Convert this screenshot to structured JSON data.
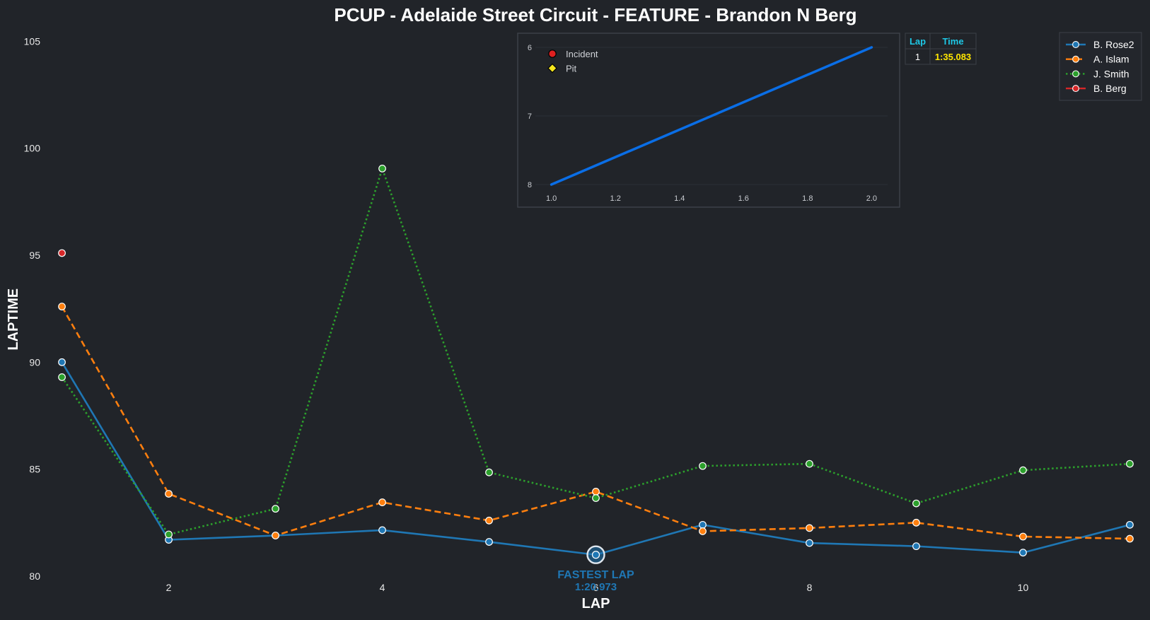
{
  "chart_data": [
    {
      "type": "line",
      "title": "PCUP - Adelaide Street Circuit - FEATURE - Brandon N Berg",
      "xlabel": "LAP",
      "ylabel": "LAPTIME",
      "xlim": [
        0.95,
        11.05
      ],
      "ylim": [
        80,
        106.2
      ],
      "x_ticks": [
        2,
        4,
        6,
        8,
        10
      ],
      "y_ticks": [
        80,
        85,
        90,
        95,
        100,
        105
      ],
      "grid": false,
      "legend_position": "top-right",
      "series": [
        {
          "name": "B. Rose2",
          "color": "#1f77b4",
          "style": "solid",
          "x": [
            1,
            2,
            3,
            4,
            5,
            6,
            7,
            8,
            9,
            10,
            11
          ],
          "values": [
            90.0,
            81.7,
            81.9,
            82.15,
            81.6,
            81.0,
            82.4,
            81.55,
            81.4,
            81.1,
            82.4
          ]
        },
        {
          "name": "A. Islam",
          "color": "#ff7f0e",
          "style": "dashed",
          "x": [
            1,
            2,
            3,
            4,
            5,
            6,
            7,
            8,
            9,
            10,
            11
          ],
          "values": [
            92.6,
            83.85,
            81.9,
            83.45,
            82.6,
            83.95,
            82.1,
            82.25,
            82.5,
            81.85,
            81.75
          ]
        },
        {
          "name": "J. Smith",
          "color": "#2ca02c",
          "style": "dotted",
          "x": [
            1,
            2,
            3,
            4,
            5,
            6,
            7,
            8,
            9,
            10,
            11
          ],
          "values": [
            89.3,
            81.95,
            83.15,
            99.05,
            84.85,
            83.65,
            85.15,
            85.25,
            83.4,
            84.95,
            85.25
          ]
        },
        {
          "name": "B. Berg",
          "color": "#d62728",
          "style": "solid",
          "x": [
            1
          ],
          "values": [
            95.1
          ]
        }
      ],
      "annotations": [
        {
          "x": 6,
          "y": 81.0,
          "line1": "FASTEST LAP",
          "line2": "1:20.973",
          "color": "#1f77b4"
        }
      ]
    },
    {
      "type": "line",
      "inset": true,
      "xlim": [
        0.95,
        2.05
      ],
      "ylim": [
        8.01,
        5.99
      ],
      "x_ticks": [
        1.0,
        1.2,
        1.4,
        1.6,
        1.8,
        2.0
      ],
      "y_ticks": [
        6,
        7,
        8
      ],
      "grid": true,
      "series": [
        {
          "color": "#0a6ee6",
          "x": [
            1.0,
            2.0
          ],
          "values": [
            8,
            6
          ]
        }
      ],
      "legend": [
        {
          "name": "Incident",
          "color": "#e02020",
          "marker": "circle"
        },
        {
          "name": "Pit",
          "color": "#f5e61e",
          "marker": "diamond"
        }
      ]
    }
  ],
  "lap_table": {
    "headers": [
      "Lap",
      "Time"
    ],
    "rows": [
      [
        "1",
        "1:35.083"
      ]
    ],
    "header_color": "#1ec8e6",
    "time_color": "#ffe600"
  },
  "colors": {
    "background": "#212429",
    "text": "#ffffff",
    "tick_text": "#e8e8e8",
    "panel_border": "#3c4048"
  }
}
